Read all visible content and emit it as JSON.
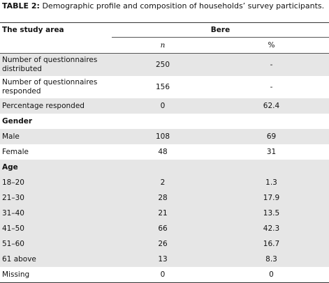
{
  "caption": {
    "label": "TABLE 2:",
    "text": "Demographic profile and composition of households’ survey participants."
  },
  "table": {
    "stub_header": "The study area",
    "group_header": "Bere",
    "columns": [
      "n",
      "%"
    ],
    "rows": [
      [
        "Number of questionnaires distributed",
        "250",
        "-"
      ],
      [
        "Number of questionnaires responded",
        "156",
        "-"
      ],
      [
        "Percentage responded",
        "0",
        "62.4"
      ],
      [
        "Gender"
      ],
      [
        "Male",
        "108",
        "69"
      ],
      [
        "Female",
        "48",
        "31"
      ],
      [
        "Age"
      ],
      [
        "18–20",
        "2",
        "1.3"
      ],
      [
        "21–30",
        "28",
        "17.9"
      ],
      [
        "31–40",
        "21",
        "13.5"
      ],
      [
        "41–50",
        "66",
        "42.3"
      ],
      [
        "51–60",
        "26",
        "16.7"
      ],
      [
        "61 above",
        "13",
        "8.3"
      ],
      [
        "Missing",
        "0",
        "0"
      ]
    ]
  }
}
